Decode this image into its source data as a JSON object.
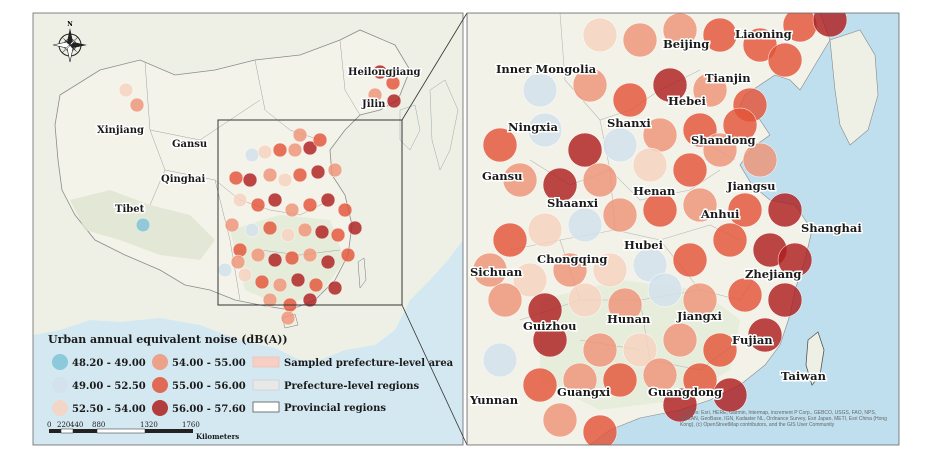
{
  "legend": {
    "title": "Urban annual equivalent noise (dB(A))",
    "classes": [
      {
        "label": "48.20 - 49.00",
        "color": "#7fc3d6"
      },
      {
        "label": "49.00 - 52.50",
        "color": "#d2e0ec"
      },
      {
        "label": "52.50 - 54.00",
        "color": "#f7d2bf"
      },
      {
        "label": "54.00 - 55.00",
        "color": "#ee9478"
      },
      {
        "label": "55.00 - 56.00",
        "color": "#e35438"
      },
      {
        "label": "56.00 - 57.60",
        "color": "#ad1f1f"
      }
    ],
    "layers": [
      {
        "label": "Sampled prefecture-level area",
        "fill": "#f7cfc3"
      },
      {
        "label": "Prefecture-level regions",
        "fill": "#e8e8e8"
      },
      {
        "label": "Provincial regions",
        "fill": "#ffffff"
      }
    ]
  },
  "scalebar": {
    "ticks": [
      "0",
      "220",
      "440",
      "880",
      "1320",
      "1760"
    ],
    "unit": "Kilometers"
  },
  "left_map": {
    "labels": [
      "Heilongjiang",
      "Jilin",
      "Xinjiang",
      "Gansu",
      "Qinghai",
      "Tibet"
    ]
  },
  "right_map": {
    "labels": [
      "Beijing",
      "Liaoning",
      "Inner Mongolia",
      "Tianjin",
      "Hebei",
      "Ningxia",
      "Shanxi",
      "Shandong",
      "Gansu",
      "Henan",
      "Jiangsu",
      "Shaanxi",
      "Anhui",
      "Shanghai",
      "Hubei",
      "Sichuan",
      "Chongqing",
      "Zhejiang",
      "Guizhou",
      "Hunan",
      "Jiangxi",
      "Fujian",
      "Taiwan",
      "Yunnan",
      "Guangxi",
      "Guangdong"
    ],
    "attribution": "Sources: Esri, HERE, Garmin, Intermap, increment P Corp., GEBCO, USGS, FAO, NPS, NRCAN, GeoBase, IGN, Kadaster NL, Ordnance Survey, Esri Japan, METI, Esri China (Hong Kong), (c) OpenStreetMap contributors, and the GIS User Community"
  },
  "compass": {
    "north_symbol": "N"
  }
}
